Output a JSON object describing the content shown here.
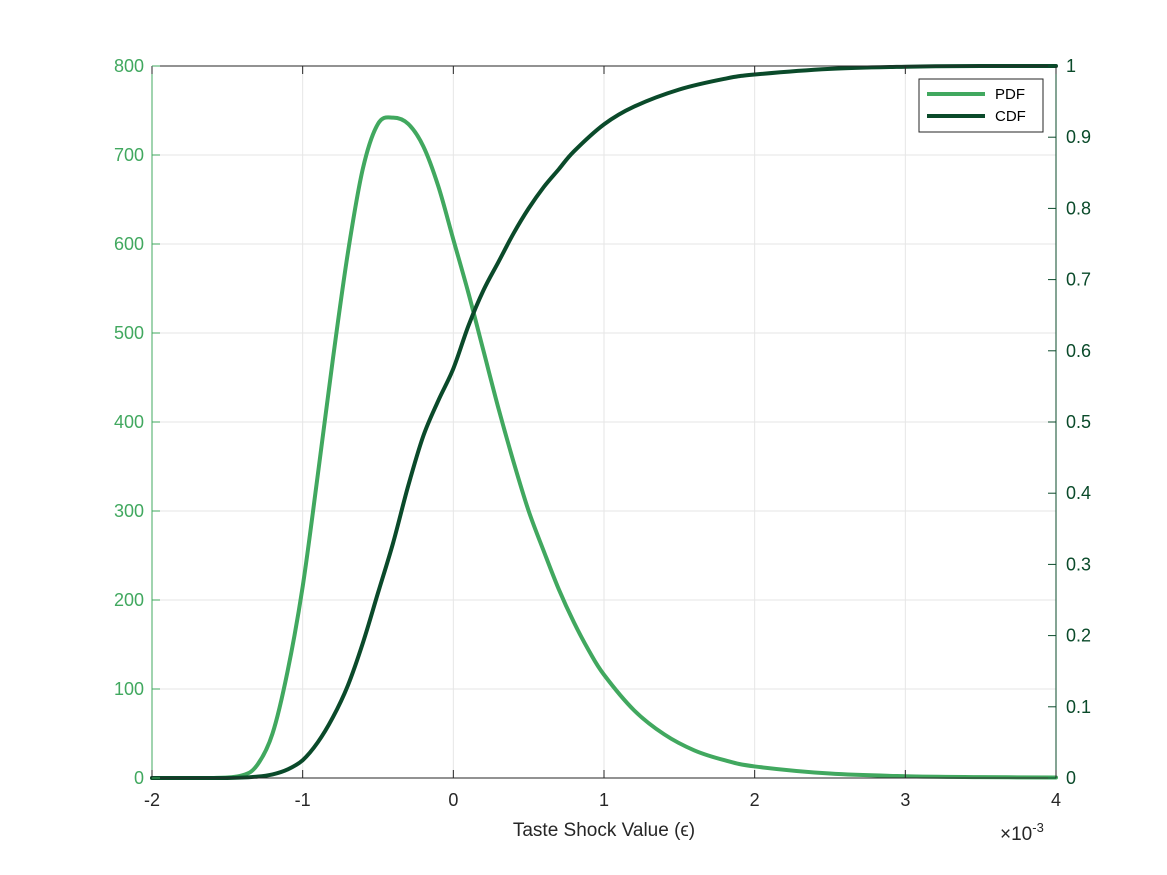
{
  "chart_data": {
    "type": "line",
    "title": "",
    "xlabel": "Taste Shock Value (ϵ)",
    "x_exponent_label": {
      "base": "×10",
      "exp": "-3"
    },
    "xlim": [
      -2,
      4
    ],
    "x_ticks": [
      -2,
      -1,
      0,
      1,
      2,
      3,
      4
    ],
    "x_tick_labels": [
      "-2",
      "-1",
      "0",
      "1",
      "2",
      "3",
      "4"
    ],
    "y_left": {
      "lim": [
        0,
        800
      ],
      "ticks": [
        0,
        100,
        200,
        300,
        400,
        500,
        600,
        700,
        800
      ],
      "tick_labels": [
        "0",
        "100",
        "200",
        "300",
        "400",
        "500",
        "600",
        "700",
        "800"
      ],
      "color": "#41a85f"
    },
    "y_right": {
      "lim": [
        0,
        1
      ],
      "ticks": [
        0,
        0.1,
        0.2,
        0.3,
        0.4,
        0.5,
        0.6,
        0.7,
        0.8,
        0.9,
        1
      ],
      "tick_labels": [
        "0",
        "0.1",
        "0.2",
        "0.3",
        "0.4",
        "0.5",
        "0.6",
        "0.7",
        "0.8",
        "0.9",
        "1"
      ],
      "color": "#0a4a2a"
    },
    "grid": true,
    "legend_position": "top-right",
    "series": [
      {
        "name": "PDF",
        "axis": "left",
        "color": "#41a85f",
        "x": [
          -2,
          -1.6,
          -1.4,
          -1.3,
          -1.2,
          -1.1,
          -1.0,
          -0.9,
          -0.8,
          -0.7,
          -0.6,
          -0.5,
          -0.4,
          -0.3,
          -0.2,
          -0.1,
          0,
          0.1,
          0.2,
          0.3,
          0.4,
          0.5,
          0.6,
          0.7,
          0.8,
          0.9,
          1.0,
          1.2,
          1.4,
          1.6,
          1.8,
          2.0,
          2.5,
          3.0,
          3.5,
          4.0
        ],
        "y": [
          0,
          0,
          3,
          15,
          50,
          120,
          215,
          340,
          470,
          590,
          685,
          735,
          742,
          735,
          710,
          665,
          605,
          545,
          480,
          415,
          355,
          300,
          255,
          212,
          175,
          143,
          116,
          76,
          49,
          31,
          20,
          13,
          5,
          2,
          1,
          0.5
        ]
      },
      {
        "name": "CDF",
        "axis": "right",
        "color": "#0a4a2a",
        "x": [
          -2,
          -1.5,
          -1.3,
          -1.2,
          -1.1,
          -1.0,
          -0.9,
          -0.8,
          -0.7,
          -0.6,
          -0.5,
          -0.4,
          -0.3,
          -0.2,
          -0.1,
          0,
          0.1,
          0.2,
          0.3,
          0.4,
          0.5,
          0.6,
          0.7,
          0.8,
          1.0,
          1.2,
          1.5,
          1.8,
          2.0,
          2.5,
          3.0,
          3.5,
          4.0
        ],
        "y": [
          0,
          0,
          0.002,
          0.005,
          0.012,
          0.025,
          0.05,
          0.085,
          0.13,
          0.19,
          0.26,
          0.33,
          0.41,
          0.48,
          0.53,
          0.575,
          0.635,
          0.685,
          0.725,
          0.765,
          0.8,
          0.83,
          0.855,
          0.88,
          0.918,
          0.943,
          0.967,
          0.982,
          0.988,
          0.996,
          0.999,
          1.0,
          1.0
        ]
      }
    ]
  }
}
